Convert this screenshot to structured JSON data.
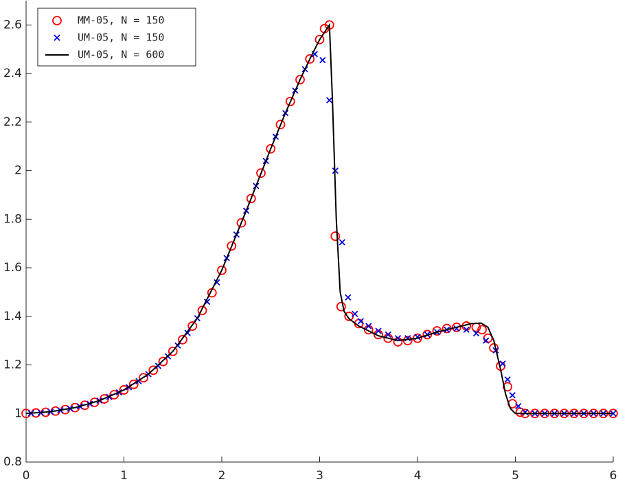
{
  "chart_data": {
    "type": "line",
    "xlim": [
      0,
      6
    ],
    "ylim": [
      0.8,
      2.7
    ],
    "xticks": [
      0,
      1,
      2,
      3,
      4,
      5,
      6
    ],
    "yticks": [
      0.8,
      1,
      1.2,
      1.4,
      1.6,
      1.8,
      2,
      2.2,
      2.4,
      2.6
    ],
    "grid": false,
    "legend": "upper left",
    "series": [
      {
        "name": "MM-05, N = 150",
        "color": "#ff0000",
        "marker": "circle",
        "x": [
          0,
          0.1,
          0.2,
          0.3,
          0.4,
          0.5,
          0.6,
          0.7,
          0.8,
          0.9,
          1.0,
          1.1,
          1.2,
          1.3,
          1.4,
          1.5,
          1.6,
          1.7,
          1.8,
          1.9,
          2.0,
          2.1,
          2.2,
          2.3,
          2.4,
          2.5,
          2.6,
          2.7,
          2.8,
          2.9,
          3.0,
          3.05,
          3.1,
          3.16,
          3.22,
          3.3,
          3.4,
          3.5,
          3.6,
          3.7,
          3.8,
          3.9,
          4.0,
          4.1,
          4.2,
          4.3,
          4.4,
          4.5,
          4.6,
          4.66,
          4.72,
          4.78,
          4.85,
          4.92,
          4.97,
          5.05,
          5.1,
          5.2,
          5.3,
          5.4,
          5.5,
          5.6,
          5.7,
          5.8,
          5.9,
          6.0
        ],
        "values": [
          1.0,
          1.002,
          1.005,
          1.01,
          1.016,
          1.024,
          1.034,
          1.046,
          1.06,
          1.077,
          1.097,
          1.12,
          1.147,
          1.178,
          1.214,
          1.256,
          1.304,
          1.36,
          1.424,
          1.497,
          1.59,
          1.69,
          1.785,
          1.885,
          1.99,
          2.09,
          2.19,
          2.285,
          2.375,
          2.46,
          2.54,
          2.585,
          2.6,
          1.73,
          1.44,
          1.4,
          1.37,
          1.345,
          1.325,
          1.31,
          1.295,
          1.3,
          1.31,
          1.325,
          1.34,
          1.35,
          1.355,
          1.36,
          1.355,
          1.345,
          1.31,
          1.27,
          1.195,
          1.11,
          1.04,
          1.005,
          1.0,
          1.0,
          1.0,
          1.0,
          1.0,
          1.0,
          1.0,
          1.0,
          1.0,
          1.0
        ]
      },
      {
        "name": "UM-05, N = 150",
        "color": "#0000dd",
        "marker": "x",
        "x": [
          0.05,
          0.15,
          0.25,
          0.35,
          0.45,
          0.55,
          0.65,
          0.75,
          0.85,
          0.95,
          1.05,
          1.15,
          1.25,
          1.35,
          1.45,
          1.55,
          1.65,
          1.75,
          1.85,
          1.95,
          2.05,
          2.15,
          2.25,
          2.35,
          2.45,
          2.55,
          2.65,
          2.75,
          2.85,
          2.95,
          3.03,
          3.1,
          3.16,
          3.23,
          3.29,
          3.36,
          3.42,
          3.5,
          3.6,
          3.7,
          3.8,
          3.9,
          4.0,
          4.1,
          4.2,
          4.3,
          4.4,
          4.5,
          4.6,
          4.7,
          4.8,
          4.87,
          4.92,
          4.97,
          5.03,
          5.1,
          5.2,
          5.3,
          5.4,
          5.5,
          5.6,
          5.7,
          5.8,
          5.9,
          6.0
        ],
        "values": [
          1.001,
          1.003,
          1.007,
          1.013,
          1.02,
          1.029,
          1.04,
          1.053,
          1.068,
          1.087,
          1.108,
          1.133,
          1.162,
          1.196,
          1.235,
          1.28,
          1.332,
          1.392,
          1.46,
          1.54,
          1.64,
          1.737,
          1.835,
          1.937,
          2.04,
          2.14,
          2.237,
          2.33,
          2.418,
          2.48,
          2.455,
          2.29,
          2.0,
          1.705,
          1.478,
          1.41,
          1.38,
          1.36,
          1.34,
          1.325,
          1.31,
          1.31,
          1.315,
          1.325,
          1.335,
          1.345,
          1.35,
          1.345,
          1.33,
          1.3,
          1.26,
          1.205,
          1.14,
          1.075,
          1.03,
          1.005,
          1.0,
          1.0,
          1.0,
          1.0,
          1.0,
          1.0,
          1.0,
          1.0,
          1.0
        ]
      },
      {
        "name": "UM-05, N = 600",
        "color": "#000000",
        "marker": "line",
        "x": [
          0,
          0.25,
          0.5,
          0.75,
          1.0,
          1.25,
          1.5,
          1.75,
          2.0,
          2.25,
          2.5,
          2.65,
          2.8,
          2.9,
          3.0,
          3.1,
          3.13,
          3.17,
          3.21,
          3.25,
          3.3,
          3.4,
          3.6,
          3.8,
          4.0,
          4.2,
          4.4,
          4.55,
          4.65,
          4.72,
          4.78,
          4.85,
          4.9,
          4.95,
          5.0,
          5.05,
          6.0
        ],
        "values": [
          1.0,
          1.007,
          1.024,
          1.053,
          1.097,
          1.162,
          1.256,
          1.392,
          1.59,
          1.835,
          2.09,
          2.237,
          2.375,
          2.46,
          2.54,
          2.6,
          2.3,
          1.8,
          1.5,
          1.42,
          1.39,
          1.36,
          1.32,
          1.3,
          1.31,
          1.335,
          1.355,
          1.37,
          1.372,
          1.355,
          1.3,
          1.18,
          1.08,
          1.02,
          1.0,
          1.0,
          1.0
        ]
      }
    ]
  }
}
